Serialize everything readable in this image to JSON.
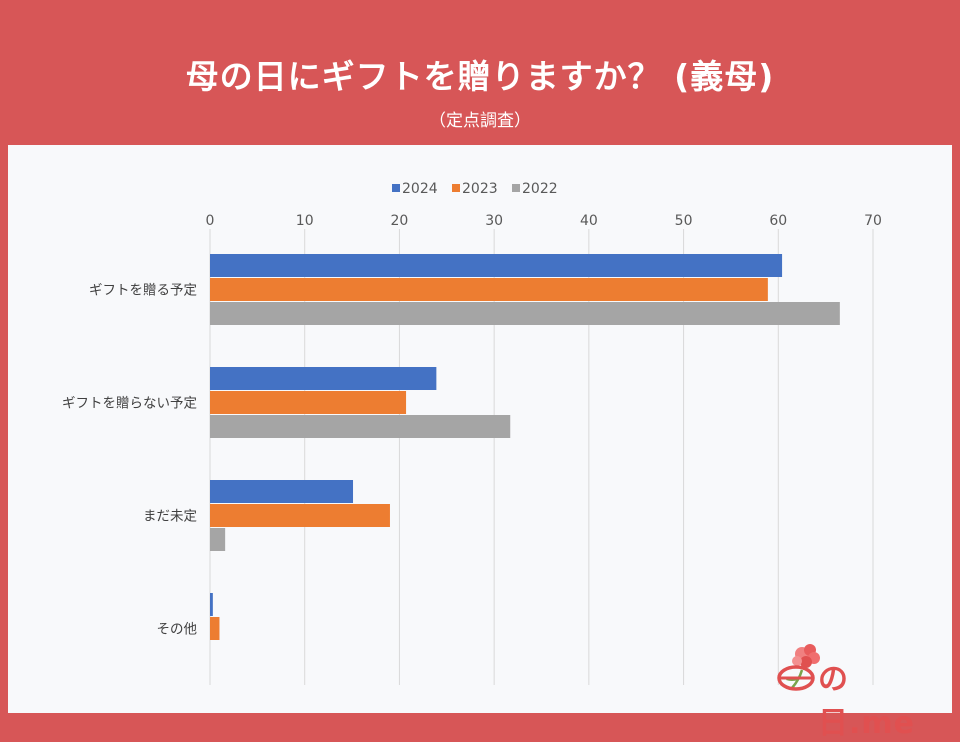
{
  "header": {
    "title": "母の日にギフトを贈りますか？ (義母)",
    "subtitle": "（定点調査）"
  },
  "logo": {
    "text": "の日.me",
    "icon": "carnation-icon"
  },
  "colors": {
    "background": "#d75657",
    "series_2024": "#4472c4",
    "series_2023": "#ed7d31",
    "series_2022": "#a5a5a5"
  },
  "chart_data": {
    "type": "bar",
    "orientation": "horizontal",
    "categories": [
      "ギフトを贈る予定",
      "ギフトを贈らない予定",
      "まだ未定",
      "その他"
    ],
    "series": [
      {
        "name": "2024",
        "values": [
          60.4,
          23.9,
          15.1,
          0.3
        ]
      },
      {
        "name": "2023",
        "values": [
          58.9,
          20.7,
          19.0,
          1.0
        ]
      },
      {
        "name": "2022",
        "values": [
          66.5,
          31.7,
          1.6,
          0.0
        ]
      }
    ],
    "ticks": [
      "0",
      "10",
      "20",
      "30",
      "40",
      "50",
      "60",
      "70"
    ],
    "xlim": [
      0,
      70
    ],
    "legend_position": "top",
    "grid": true,
    "title": "",
    "xlabel": "",
    "ylabel": ""
  }
}
